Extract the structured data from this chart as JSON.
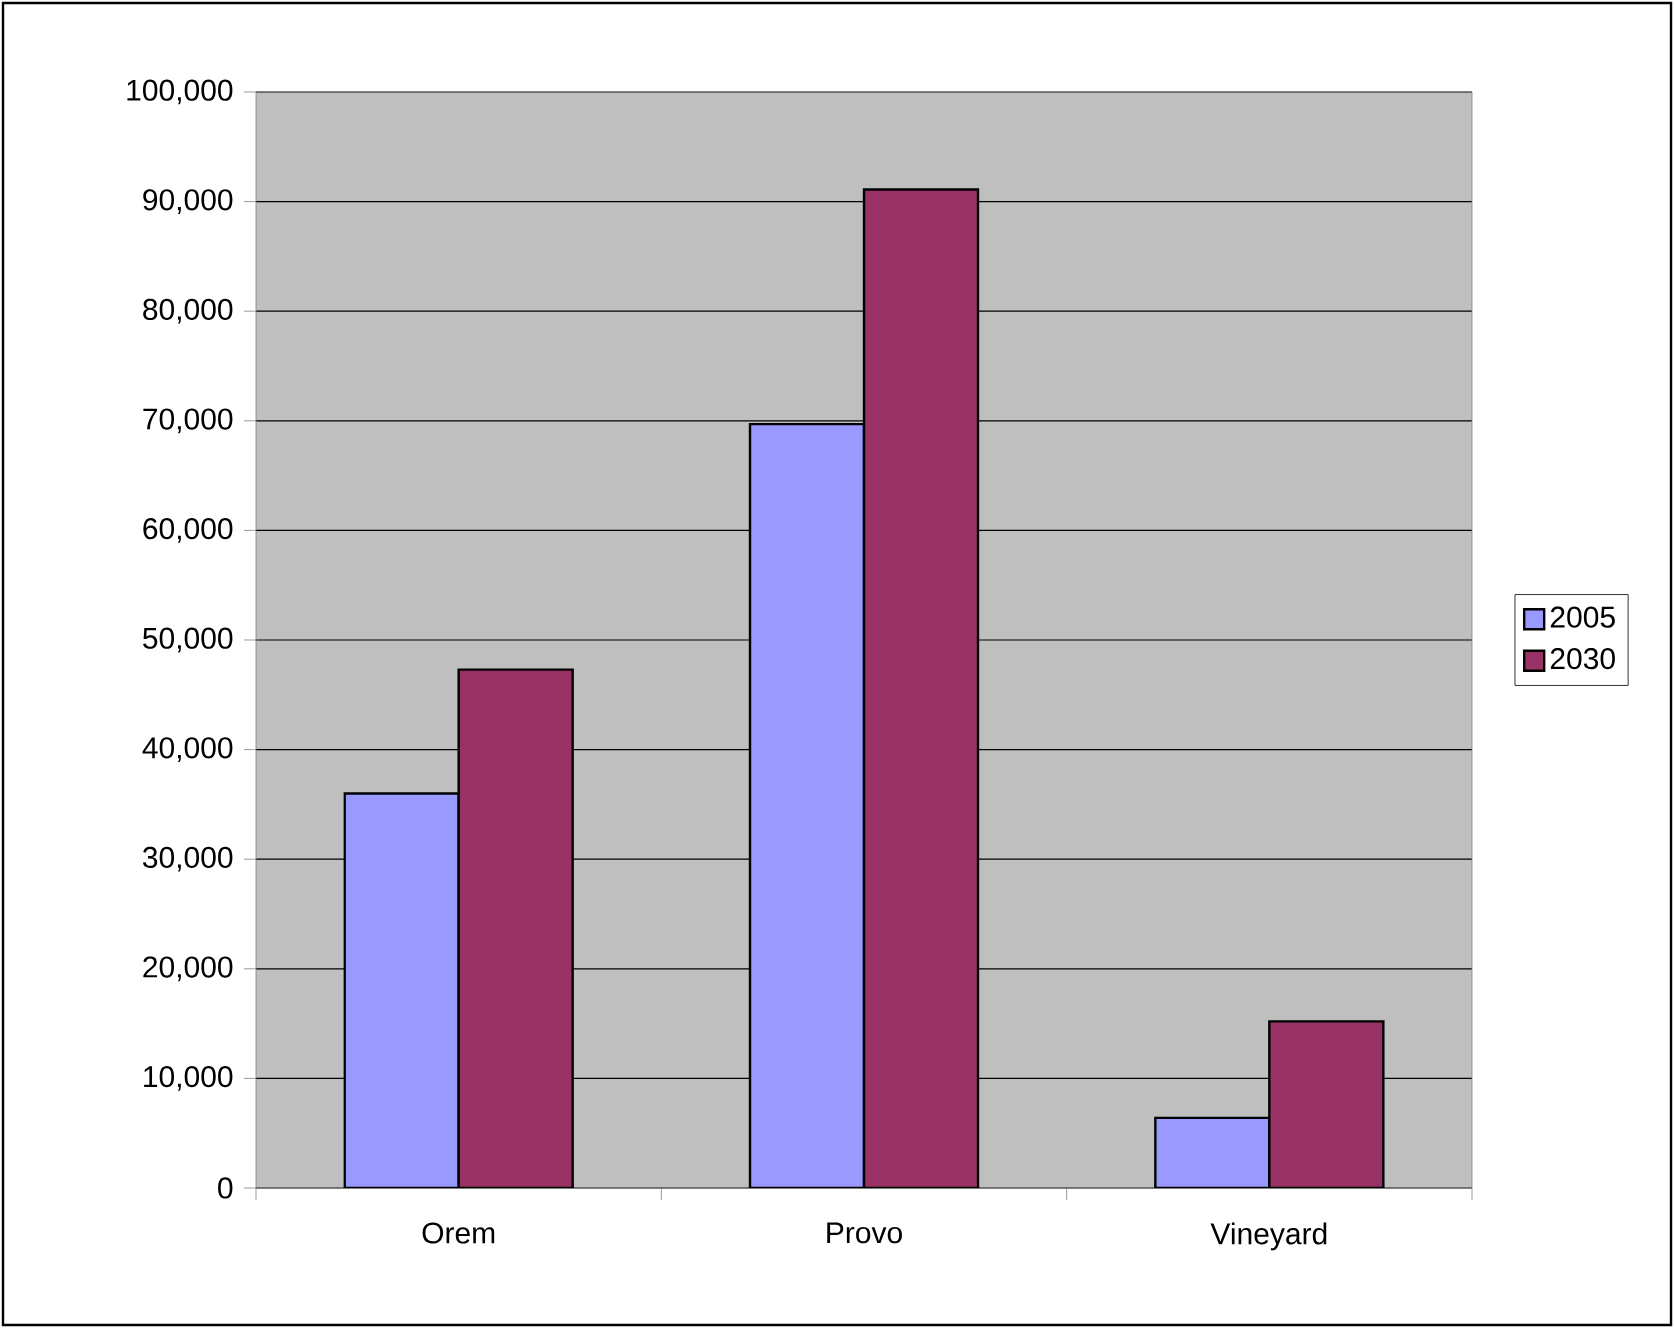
{
  "chart_data": {
    "type": "bar",
    "categories": [
      "Orem",
      "Provo",
      "Vineyard"
    ],
    "series": [
      {
        "name": "2005",
        "color": "#9999ff",
        "values": [
          36000,
          69700,
          6400
        ]
      },
      {
        "name": "2030",
        "color": "#993366",
        "values": [
          47300,
          91100,
          15200
        ]
      }
    ],
    "ylim": [
      0,
      100000
    ],
    "yticks": [
      {
        "value": 0,
        "label": "0"
      },
      {
        "value": 10000,
        "label": "10,000"
      },
      {
        "value": 20000,
        "label": "20,000"
      },
      {
        "value": 30000,
        "label": "30,000"
      },
      {
        "value": 40000,
        "label": "40,000"
      },
      {
        "value": 50000,
        "label": "50,000"
      },
      {
        "value": 60000,
        "label": "60,000"
      },
      {
        "value": 70000,
        "label": "70,000"
      },
      {
        "value": 80000,
        "label": "80,000"
      },
      {
        "value": 90000,
        "label": "90,000"
      },
      {
        "value": 100000,
        "label": "100,000"
      }
    ],
    "grid": "y",
    "legend": "right"
  }
}
